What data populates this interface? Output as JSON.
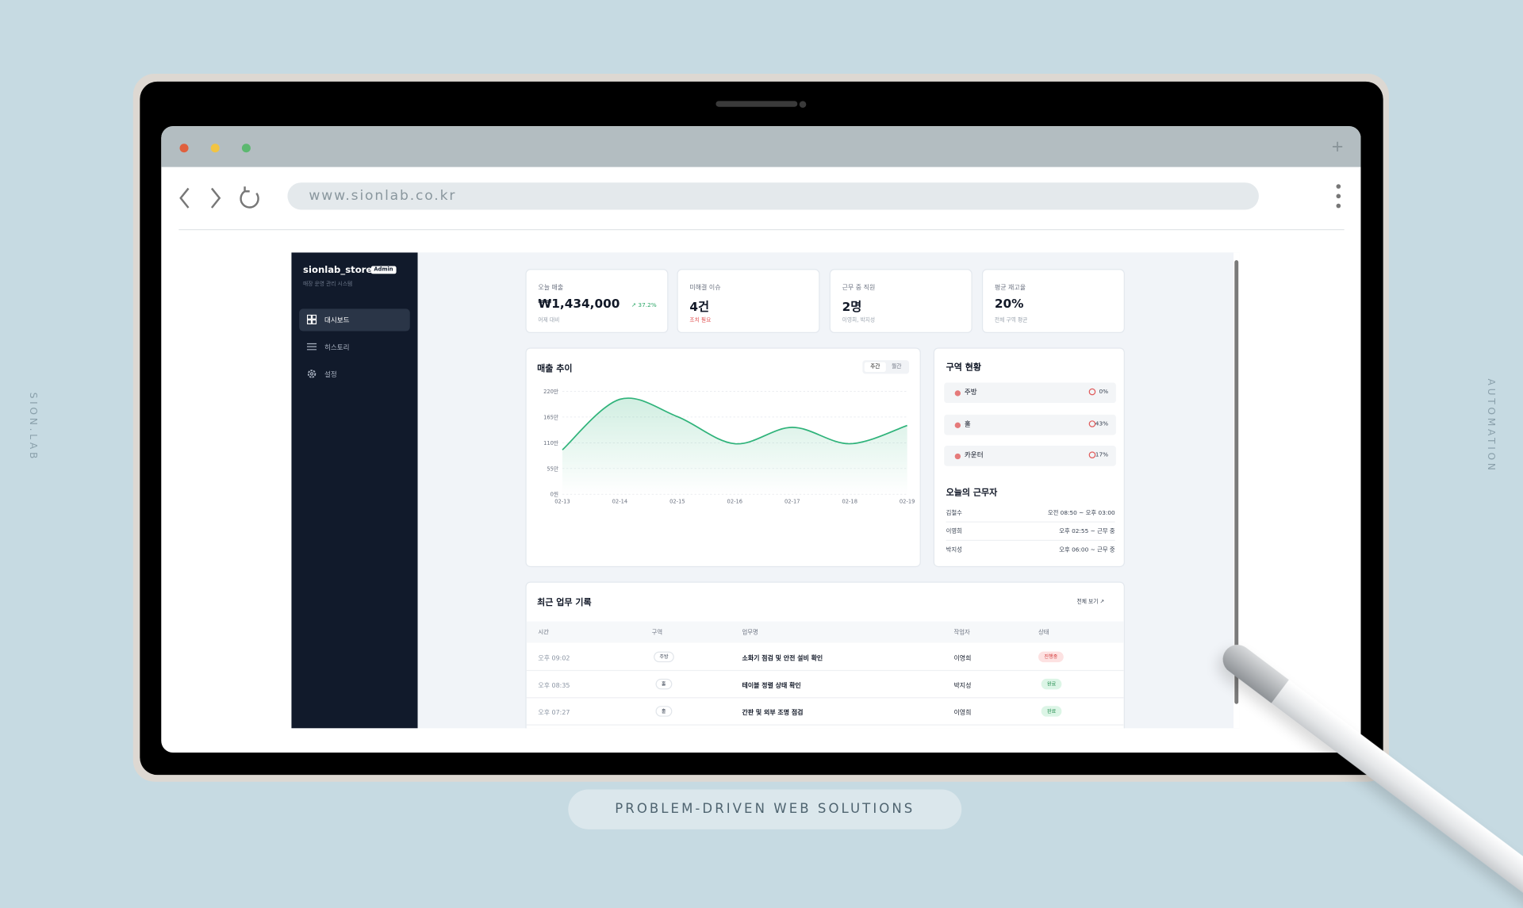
{
  "frame": {
    "side_left": "SION.LAB",
    "side_right": "AUTOMATION",
    "tagline": "PROBLEM-DRIVEN WEB SOLUTIONS"
  },
  "browser": {
    "url": "www.sionlab.co.kr"
  },
  "sidebar": {
    "store": "sionlab_store",
    "badge": "Admin",
    "subtitle": "매장 운영 관리 시스템",
    "nav": [
      "대시보드",
      "히스토리",
      "설정"
    ]
  },
  "stats": [
    {
      "label": "오늘 매출",
      "value": "₩1,434,000",
      "delta": "37.2%",
      "note": "어제 대비"
    },
    {
      "label": "미해결 이슈",
      "value": "4건",
      "note": "조치 필요"
    },
    {
      "label": "근무 중 직원",
      "value": "2명",
      "note": "이영희, 박지성"
    },
    {
      "label": "평균 재고율",
      "value": "20%",
      "note": "전체 구역 평균"
    }
  ],
  "chart_data": {
    "type": "line",
    "title": "매출 추이",
    "toggles": [
      "주간",
      "월간"
    ],
    "categories": [
      "02-13",
      "02-14",
      "02-15",
      "02-16",
      "02-17",
      "02-18",
      "02-19"
    ],
    "series": [
      {
        "color": "#2fb37a",
        "values": [
          95,
          203,
          166,
          108,
          143,
          108,
          147
        ]
      }
    ],
    "ylim": [
      0,
      220
    ],
    "yticks": [
      {
        "value": 0,
        "label": "0원"
      },
      {
        "value": 55,
        "label": "55만"
      },
      {
        "value": 110,
        "label": "110만"
      },
      {
        "value": 165,
        "label": "165만"
      },
      {
        "value": 220,
        "label": "220만"
      }
    ],
    "grid": true
  },
  "zones": {
    "title": "구역 현황",
    "items": [
      {
        "name": "주방",
        "value": "0%"
      },
      {
        "name": "홀",
        "value": "43%"
      },
      {
        "name": "카운터",
        "value": "17%"
      }
    ]
  },
  "staff": {
    "title": "오늘의 근무자",
    "rows": [
      [
        "김철수",
        "오전 08:50 ~ 오후 03:00"
      ],
      [
        "이영희",
        "오후 02:55 ~ 근무 중"
      ],
      [
        "박지성",
        "오후 06:00 ~ 근무 중"
      ]
    ]
  },
  "log": {
    "title": "최근 업무 기록",
    "view_all": "전체 보기 ↗",
    "headers": [
      "시간",
      "구역",
      "업무명",
      "작업자",
      "상태"
    ],
    "rows": [
      [
        "오후 09:02",
        "주방",
        "소화기 점검 및 안전 설비 확인",
        "이영희",
        "진행중"
      ],
      [
        "오후 08:35",
        "홀",
        "테이블 정렬 상태 확인",
        "박지성",
        "완료"
      ],
      [
        "오후 07:27",
        "홀",
        "간판 및 외부 조명 점검",
        "이영희",
        "완료"
      ]
    ]
  }
}
